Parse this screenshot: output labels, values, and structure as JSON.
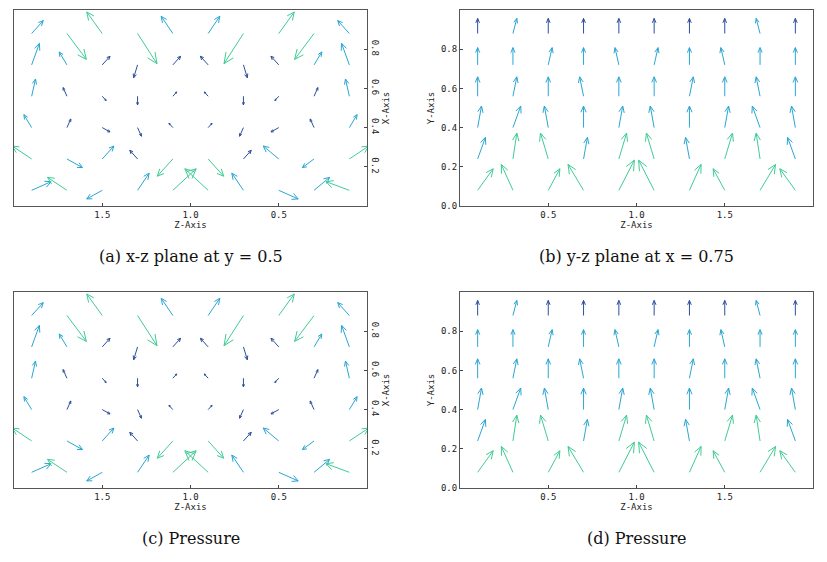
{
  "chart_data": [
    {
      "type": "quiver",
      "title": "(a) x-z plane at y = 0.5",
      "xlabel": "Z-Axis",
      "ylabel": "X-Axis",
      "xlim": [
        2,
        0
      ],
      "ylim": [
        0,
        1
      ],
      "xticks": [
        {
          "value": 1.5,
          "label": "1.5"
        },
        {
          "value": 1,
          "label": "1.0"
        },
        {
          "value": 0.5,
          "label": "0.5"
        }
      ],
      "yticks": [
        0.2,
        0.4,
        0.6,
        0.8
      ],
      "x": [
        0.1,
        0.3,
        0.5,
        0.7,
        0.9,
        1.1,
        1.3,
        1.5,
        1.7,
        1.9,
        0.1,
        0.3,
        0.5,
        0.7,
        0.9,
        1.1,
        1.3,
        1.5,
        1.7,
        1.9,
        0.1,
        0.3,
        0.5,
        0.7,
        0.9,
        1.1,
        1.3,
        1.5,
        1.7,
        1.9,
        0.1,
        0.3,
        0.5,
        0.7,
        0.9,
        1.1,
        1.3,
        1.5,
        1.7,
        1.9,
        0.1,
        0.3,
        0.5,
        0.7,
        0.9,
        1.1,
        1.3,
        1.5,
        1.7,
        1.9,
        0.1,
        0.3,
        0.5,
        0.7,
        0.9,
        1.1,
        1.3,
        1.5,
        1.7,
        1.9
      ],
      "y": [
        0.08,
        0.08,
        0.08,
        0.08,
        0.08,
        0.08,
        0.08,
        0.08,
        0.08,
        0.08,
        0.24,
        0.24,
        0.24,
        0.24,
        0.24,
        0.24,
        0.24,
        0.24,
        0.24,
        0.24,
        0.4,
        0.4,
        0.4,
        0.4,
        0.4,
        0.4,
        0.4,
        0.4,
        0.4,
        0.4,
        0.56,
        0.56,
        0.56,
        0.56,
        0.56,
        0.56,
        0.56,
        0.56,
        0.56,
        0.56,
        0.72,
        0.72,
        0.72,
        0.72,
        0.72,
        0.72,
        0.72,
        0.72,
        0.72,
        0.72,
        0.88,
        0.88,
        0.88,
        0.88,
        0.88,
        0.88,
        0.88,
        0.88,
        0.88,
        0.88
      ],
      "u": [
        0.06,
        -0.04,
        -0.05,
        0.03,
        0.06,
        -0.06,
        -0.03,
        0.04,
        0.05,
        -0.05,
        -0.05,
        0.03,
        0.04,
        -0.02,
        -0.04,
        0.04,
        0.02,
        -0.03,
        -0.04,
        0.05,
        -0.02,
        0.01,
        0.02,
        0.01,
        -0.01,
        0.01,
        -0.01,
        -0.02,
        -0.01,
        0.02,
        0.01,
        -0.01,
        0.01,
        0,
        0.01,
        -0.01,
        0,
        -0.01,
        0.01,
        -0.01,
        0.02,
        -0.02,
        0.02,
        -0.01,
        0.02,
        -0.02,
        0.01,
        -0.02,
        0.02,
        -0.02,
        0.03,
        0.05,
        -0.04,
        0.05,
        -0.03,
        0.03,
        -0.05,
        0.04,
        -0.05,
        -0.03
      ],
      "v": [
        0.02,
        0.03,
        -0.02,
        0.04,
        0.05,
        0.05,
        0.04,
        -0.02,
        0.03,
        0.02,
        0.03,
        -0.02,
        0.03,
        0.02,
        -0.04,
        -0.04,
        0.02,
        0.03,
        -0.02,
        0.03,
        0.03,
        0.02,
        -0.01,
        -0.02,
        0.01,
        0.01,
        -0.02,
        -0.01,
        0.02,
        0.03,
        0.04,
        0.02,
        -0.01,
        -0.02,
        0.01,
        0.01,
        -0.02,
        -0.01,
        0.02,
        0.04,
        0.05,
        0.03,
        0.02,
        -0.03,
        0.02,
        0.02,
        -0.03,
        0.02,
        0.03,
        0.05,
        0.03,
        -0.06,
        0.05,
        -0.07,
        0.04,
        0.04,
        -0.07,
        0.05,
        -0.06,
        0.03
      ]
    },
    {
      "type": "quiver",
      "title": "(b) y-z plane at x = 0.75",
      "xlabel": "Z-Axis",
      "ylabel": "Y-Axis",
      "xlim": [
        0,
        2
      ],
      "ylim": [
        0,
        1
      ],
      "xticks": [
        {
          "value": 0.5,
          "label": "0.5"
        },
        {
          "value": 1,
          "label": "1.0"
        },
        {
          "value": 1.5,
          "label": "1.5"
        }
      ],
      "yticks": [
        {
          "value": 0,
          "label": "0.0"
        },
        0.2,
        0.4,
        0.6,
        0.8
      ],
      "x": [
        0.1,
        0.3,
        0.5,
        0.7,
        0.9,
        1.1,
        1.3,
        1.5,
        1.7,
        1.9,
        0.1,
        0.3,
        0.5,
        0.7,
        0.9,
        1.1,
        1.3,
        1.5,
        1.7,
        1.9,
        0.1,
        0.3,
        0.5,
        0.7,
        0.9,
        1.1,
        1.3,
        1.5,
        1.7,
        1.9,
        0.1,
        0.3,
        0.5,
        0.7,
        0.9,
        1.1,
        1.3,
        1.5,
        1.7,
        1.9,
        0.1,
        0.3,
        0.5,
        0.7,
        0.9,
        1.1,
        1.3,
        1.5,
        1.7,
        1.9,
        0.1,
        0.3,
        0.5,
        0.7,
        0.9,
        1.1,
        1.3,
        1.5,
        1.7,
        1.9
      ],
      "y": [
        0.08,
        0.08,
        0.08,
        0.08,
        0.08,
        0.08,
        0.08,
        0.08,
        0.08,
        0.08,
        0.24,
        0.24,
        0.24,
        0.24,
        0.24,
        0.24,
        0.24,
        0.24,
        0.24,
        0.24,
        0.4,
        0.4,
        0.4,
        0.4,
        0.4,
        0.4,
        0.4,
        0.4,
        0.4,
        0.4,
        0.56,
        0.56,
        0.56,
        0.56,
        0.56,
        0.56,
        0.56,
        0.56,
        0.56,
        0.56,
        0.72,
        0.72,
        0.72,
        0.72,
        0.72,
        0.72,
        0.72,
        0.72,
        0.72,
        0.72,
        0.88,
        0.88,
        0.88,
        0.88,
        0.88,
        0.88,
        0.88,
        0.88,
        0.88,
        0.88
      ],
      "u": [
        0.04,
        -0.03,
        0.03,
        -0.04,
        0.04,
        -0.04,
        0.03,
        -0.03,
        0.04,
        -0.04,
        0.02,
        0.01,
        -0.02,
        0.01,
        0.02,
        -0.02,
        -0.01,
        0.02,
        -0.01,
        -0.02,
        0.01,
        0.02,
        -0.01,
        0,
        0.01,
        -0.01,
        0,
        0.01,
        -0.02,
        -0.01,
        0,
        0.01,
        0,
        -0.01,
        0,
        0,
        0.01,
        0,
        -0.01,
        0,
        0,
        0,
        0.01,
        0,
        -0.01,
        0.01,
        0,
        -0.01,
        0,
        0,
        0,
        0.01,
        0,
        0,
        0,
        0,
        0,
        0,
        -0.01,
        0
      ],
      "v": [
        0.05,
        0.06,
        0.05,
        0.06,
        0.07,
        0.07,
        0.06,
        0.05,
        0.06,
        0.05,
        0.05,
        0.06,
        0.06,
        0.05,
        0.06,
        0.06,
        0.05,
        0.06,
        0.06,
        0.05,
        0.05,
        0.05,
        0.05,
        0.05,
        0.05,
        0.05,
        0.05,
        0.05,
        0.05,
        0.05,
        0.045,
        0.045,
        0.045,
        0.045,
        0.045,
        0.045,
        0.045,
        0.045,
        0.045,
        0.045,
        0.04,
        0.04,
        0.04,
        0.04,
        0.04,
        0.04,
        0.04,
        0.04,
        0.04,
        0.04,
        0.035,
        0.035,
        0.035,
        0.035,
        0.035,
        0.035,
        0.035,
        0.035,
        0.035,
        0.035
      ]
    },
    {
      "type": "quiver",
      "title": "(c) Pressure",
      "xlabel": "Z-Axis",
      "ylabel": "X-Axis",
      "xlim": [
        2,
        0
      ],
      "ylim": [
        0,
        1
      ],
      "xticks": [
        {
          "value": 1.5,
          "label": "1.5"
        },
        {
          "value": 1,
          "label": "1.0"
        },
        {
          "value": 0.5,
          "label": "0.5"
        }
      ],
      "yticks": [
        0.2,
        0.4,
        0.6,
        0.8
      ],
      "x": [
        0.1,
        0.3,
        0.5,
        0.7,
        0.9,
        1.1,
        1.3,
        1.5,
        1.7,
        1.9,
        0.1,
        0.3,
        0.5,
        0.7,
        0.9,
        1.1,
        1.3,
        1.5,
        1.7,
        1.9,
        0.1,
        0.3,
        0.5,
        0.7,
        0.9,
        1.1,
        1.3,
        1.5,
        1.7,
        1.9,
        0.1,
        0.3,
        0.5,
        0.7,
        0.9,
        1.1,
        1.3,
        1.5,
        1.7,
        1.9,
        0.1,
        0.3,
        0.5,
        0.7,
        0.9,
        1.1,
        1.3,
        1.5,
        1.7,
        1.9,
        0.1,
        0.3,
        0.5,
        0.7,
        0.9,
        1.1,
        1.3,
        1.5,
        1.7,
        1.9
      ],
      "y": [
        0.08,
        0.08,
        0.08,
        0.08,
        0.08,
        0.08,
        0.08,
        0.08,
        0.08,
        0.08,
        0.24,
        0.24,
        0.24,
        0.24,
        0.24,
        0.24,
        0.24,
        0.24,
        0.24,
        0.24,
        0.4,
        0.4,
        0.4,
        0.4,
        0.4,
        0.4,
        0.4,
        0.4,
        0.4,
        0.4,
        0.56,
        0.56,
        0.56,
        0.56,
        0.56,
        0.56,
        0.56,
        0.56,
        0.56,
        0.56,
        0.72,
        0.72,
        0.72,
        0.72,
        0.72,
        0.72,
        0.72,
        0.72,
        0.72,
        0.72,
        0.88,
        0.88,
        0.88,
        0.88,
        0.88,
        0.88,
        0.88,
        0.88,
        0.88,
        0.88
      ],
      "u": [
        0.06,
        -0.04,
        -0.05,
        0.03,
        0.06,
        -0.06,
        -0.03,
        0.04,
        0.05,
        -0.05,
        -0.05,
        0.03,
        0.04,
        -0.02,
        -0.04,
        0.04,
        0.02,
        -0.03,
        -0.04,
        0.05,
        -0.02,
        0.01,
        0.02,
        0.01,
        -0.01,
        0.01,
        -0.01,
        -0.02,
        -0.01,
        0.02,
        0.01,
        -0.01,
        0.01,
        0,
        0.01,
        -0.01,
        0,
        -0.01,
        0.01,
        -0.01,
        0.02,
        -0.02,
        0.02,
        -0.01,
        0.02,
        -0.02,
        0.01,
        -0.02,
        0.02,
        -0.02,
        0.03,
        0.05,
        -0.04,
        0.05,
        -0.03,
        0.03,
        -0.05,
        0.04,
        -0.05,
        -0.03
      ],
      "v": [
        0.02,
        0.03,
        -0.02,
        0.04,
        0.05,
        0.05,
        0.04,
        -0.02,
        0.03,
        0.02,
        0.03,
        -0.02,
        0.03,
        0.02,
        -0.04,
        -0.04,
        0.02,
        0.03,
        -0.02,
        0.03,
        0.03,
        0.02,
        -0.01,
        -0.02,
        0.01,
        0.01,
        -0.02,
        -0.01,
        0.02,
        0.03,
        0.04,
        0.02,
        -0.01,
        -0.02,
        0.01,
        0.01,
        -0.02,
        -0.01,
        0.02,
        0.04,
        0.05,
        0.03,
        0.02,
        -0.03,
        0.02,
        0.02,
        -0.03,
        0.02,
        0.03,
        0.05,
        0.03,
        -0.06,
        0.05,
        -0.07,
        0.04,
        0.04,
        -0.07,
        0.05,
        -0.06,
        0.03
      ]
    },
    {
      "type": "quiver",
      "title": "(d) Pressure",
      "xlabel": "Z-Axis",
      "ylabel": "Y-Axis",
      "xlim": [
        0,
        2
      ],
      "ylim": [
        0,
        1
      ],
      "xticks": [
        {
          "value": 0.5,
          "label": "0.5"
        },
        {
          "value": 1,
          "label": "1.0"
        },
        {
          "value": 1.5,
          "label": "1.5"
        }
      ],
      "yticks": [
        {
          "value": 0,
          "label": "0.0"
        },
        0.2,
        0.4,
        0.6,
        0.8
      ],
      "x": [
        0.1,
        0.3,
        0.5,
        0.7,
        0.9,
        1.1,
        1.3,
        1.5,
        1.7,
        1.9,
        0.1,
        0.3,
        0.5,
        0.7,
        0.9,
        1.1,
        1.3,
        1.5,
        1.7,
        1.9,
        0.1,
        0.3,
        0.5,
        0.7,
        0.9,
        1.1,
        1.3,
        1.5,
        1.7,
        1.9,
        0.1,
        0.3,
        0.5,
        0.7,
        0.9,
        1.1,
        1.3,
        1.5,
        1.7,
        1.9,
        0.1,
        0.3,
        0.5,
        0.7,
        0.9,
        1.1,
        1.3,
        1.5,
        1.7,
        1.9,
        0.1,
        0.3,
        0.5,
        0.7,
        0.9,
        1.1,
        1.3,
        1.5,
        1.7,
        1.9
      ],
      "y": [
        0.08,
        0.08,
        0.08,
        0.08,
        0.08,
        0.08,
        0.08,
        0.08,
        0.08,
        0.08,
        0.24,
        0.24,
        0.24,
        0.24,
        0.24,
        0.24,
        0.24,
        0.24,
        0.24,
        0.24,
        0.4,
        0.4,
        0.4,
        0.4,
        0.4,
        0.4,
        0.4,
        0.4,
        0.4,
        0.4,
        0.56,
        0.56,
        0.56,
        0.56,
        0.56,
        0.56,
        0.56,
        0.56,
        0.56,
        0.56,
        0.72,
        0.72,
        0.72,
        0.72,
        0.72,
        0.72,
        0.72,
        0.72,
        0.72,
        0.72,
        0.88,
        0.88,
        0.88,
        0.88,
        0.88,
        0.88,
        0.88,
        0.88,
        0.88,
        0.88
      ],
      "u": [
        0.04,
        -0.03,
        0.03,
        -0.04,
        0.04,
        -0.04,
        0.03,
        -0.03,
        0.04,
        -0.04,
        0.02,
        0.01,
        -0.02,
        0.01,
        0.02,
        -0.02,
        -0.01,
        0.02,
        -0.01,
        -0.02,
        0.01,
        0.02,
        -0.01,
        0,
        0.01,
        -0.01,
        0,
        0.01,
        -0.02,
        -0.01,
        0,
        0.01,
        0,
        -0.01,
        0,
        0,
        0.01,
        0,
        -0.01,
        0,
        0,
        0,
        0.01,
        0,
        -0.01,
        0.01,
        0,
        -0.01,
        0,
        0,
        0,
        0.01,
        0,
        0,
        0,
        0,
        0,
        0,
        -0.01,
        0
      ],
      "v": [
        0.05,
        0.06,
        0.05,
        0.06,
        0.07,
        0.07,
        0.06,
        0.05,
        0.06,
        0.05,
        0.05,
        0.06,
        0.06,
        0.05,
        0.06,
        0.06,
        0.05,
        0.06,
        0.06,
        0.05,
        0.05,
        0.05,
        0.05,
        0.05,
        0.05,
        0.05,
        0.05,
        0.05,
        0.05,
        0.05,
        0.045,
        0.045,
        0.045,
        0.045,
        0.045,
        0.045,
        0.045,
        0.045,
        0.045,
        0.045,
        0.04,
        0.04,
        0.04,
        0.04,
        0.04,
        0.04,
        0.04,
        0.04,
        0.04,
        0.04,
        0.035,
        0.035,
        0.035,
        0.035,
        0.035,
        0.035,
        0.035,
        0.035,
        0.035,
        0.035
      ]
    }
  ]
}
